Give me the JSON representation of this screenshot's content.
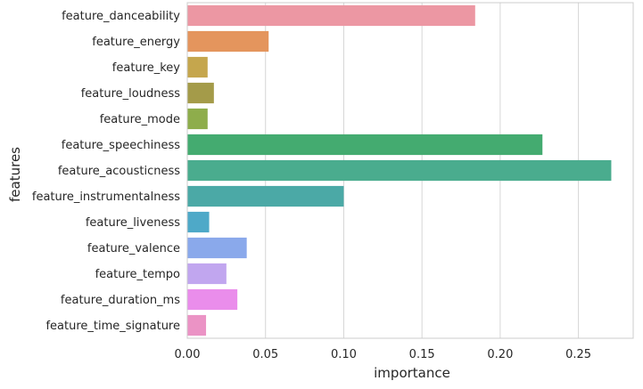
{
  "chart_data": {
    "type": "bar",
    "orientation": "horizontal",
    "title": "",
    "xlabel": "importance",
    "ylabel": "features",
    "xlim": [
      0,
      0.285
    ],
    "xticks": [
      0.0,
      0.05,
      0.1,
      0.15,
      0.2,
      0.25
    ],
    "xtick_labels": [
      "0.00",
      "0.05",
      "0.10",
      "0.15",
      "0.20",
      "0.25"
    ],
    "grid": "vertical",
    "categories": [
      "feature_danceability",
      "feature_energy",
      "feature_key",
      "feature_loudness",
      "feature_mode",
      "feature_speechiness",
      "feature_acousticness",
      "feature_instrumentalness",
      "feature_liveness",
      "feature_valence",
      "feature_tempo",
      "feature_duration_ms",
      "feature_time_signature"
    ],
    "values": [
      0.184,
      0.052,
      0.013,
      0.017,
      0.013,
      0.227,
      0.271,
      0.1,
      0.014,
      0.038,
      0.025,
      0.032,
      0.012
    ],
    "colors": [
      "#ec97a3",
      "#e4955d",
      "#c5a64d",
      "#a49b49",
      "#8ead4b",
      "#44ab70",
      "#4aac8e",
      "#4ba9a6",
      "#4ea9c8",
      "#8aa9eb",
      "#c1a6ef",
      "#ea8deb",
      "#eb93c5"
    ]
  }
}
